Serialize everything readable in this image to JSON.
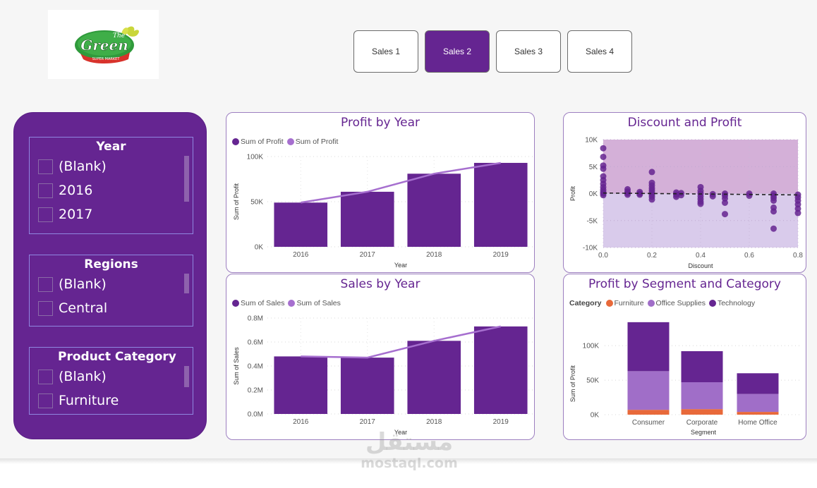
{
  "logo": {
    "brand_top": "The",
    "brand_main": "Green",
    "brand_sub": "SUPER MARKET"
  },
  "nav": {
    "buttons": [
      {
        "label": "Sales 1",
        "active": false
      },
      {
        "label": "Sales 2",
        "active": true
      },
      {
        "label": "Sales 3",
        "active": false
      },
      {
        "label": "Sales 4",
        "active": false
      }
    ]
  },
  "slicers": {
    "year": {
      "title": "Year",
      "items": [
        "(Blank)",
        "2016",
        "2017"
      ]
    },
    "regions": {
      "title": "Regions",
      "items": [
        "(Blank)",
        "Central"
      ]
    },
    "category": {
      "title": "Product Category",
      "items": [
        "(Blank)",
        "Furniture"
      ]
    }
  },
  "colors": {
    "primary": "#652591",
    "line": "#a66fcf",
    "furniture": "#e8693a",
    "office": "#a06ec8",
    "technology": "#652591",
    "scatter_pos_band": "#d4b0d8",
    "scatter_neg_band": "#d9cbeb"
  },
  "chart_data": [
    {
      "id": "profit_by_year",
      "type": "bar",
      "title": "Profit by Year",
      "legend": [
        "Sum of Profit",
        "Sum of Profit"
      ],
      "categories": [
        "2016",
        "2017",
        "2018",
        "2019"
      ],
      "series": [
        {
          "name": "Sum of Profit",
          "kind": "bar",
          "values": [
            49000,
            61000,
            81000,
            93000
          ]
        },
        {
          "name": "Sum of Profit",
          "kind": "line",
          "values": [
            49000,
            61000,
            81000,
            93000
          ]
        }
      ],
      "xlabel": "Year",
      "ylabel": "Sum of Profit",
      "ylim": [
        0,
        100000
      ],
      "yticks": [
        {
          "v": 0,
          "label": "0K"
        },
        {
          "v": 50000,
          "label": "50K"
        },
        {
          "v": 100000,
          "label": "100K"
        }
      ],
      "grid": true
    },
    {
      "id": "sales_by_year",
      "type": "bar",
      "title": "Sales by Year",
      "legend": [
        "Sum of Sales",
        "Sum of Sales"
      ],
      "categories": [
        "2016",
        "2017",
        "2018",
        "2019"
      ],
      "series": [
        {
          "name": "Sum of Sales",
          "kind": "bar",
          "values": [
            0.48,
            0.47,
            0.61,
            0.73
          ]
        },
        {
          "name": "Sum of Sales",
          "kind": "line",
          "values": [
            0.48,
            0.47,
            0.61,
            0.73
          ]
        }
      ],
      "xlabel": "Year",
      "ylabel": "Sum of Sales",
      "ylim": [
        0,
        0.8
      ],
      "yticks": [
        {
          "v": 0,
          "label": "0.0M"
        },
        {
          "v": 0.2,
          "label": "0.2M"
        },
        {
          "v": 0.4,
          "label": "0.4M"
        },
        {
          "v": 0.6,
          "label": "0.6M"
        },
        {
          "v": 0.8,
          "label": "0.8M"
        }
      ],
      "grid": true
    },
    {
      "id": "discount_and_profit",
      "type": "scatter",
      "title": "Discount and Profit",
      "xlabel": "Discount",
      "ylabel": "Profit",
      "xlim": [
        0,
        0.8
      ],
      "ylim": [
        -10000,
        10000
      ],
      "xticks": [
        {
          "v": 0,
          "label": "0.0"
        },
        {
          "v": 0.2,
          "label": "0.2"
        },
        {
          "v": 0.4,
          "label": "0.4"
        },
        {
          "v": 0.6,
          "label": "0.6"
        },
        {
          "v": 0.8,
          "label": "0.8"
        }
      ],
      "yticks": [
        {
          "v": -10000,
          "label": "-10K"
        },
        {
          "v": -5000,
          "label": "-5K"
        },
        {
          "v": 0,
          "label": "0K"
        },
        {
          "v": 5000,
          "label": "5K"
        },
        {
          "v": 10000,
          "label": "10K"
        }
      ],
      "trendline": {
        "y_at_xmin": 100,
        "y_at_xmax": -250
      },
      "points": [
        [
          0,
          8400
        ],
        [
          0,
          6800
        ],
        [
          0,
          5200
        ],
        [
          0,
          4600
        ],
        [
          0,
          3200
        ],
        [
          0,
          2500
        ],
        [
          0,
          1800
        ],
        [
          0,
          1200
        ],
        [
          0,
          700
        ],
        [
          0,
          300
        ],
        [
          0,
          0
        ],
        [
          0,
          -300
        ],
        [
          0.1,
          800
        ],
        [
          0.1,
          400
        ],
        [
          0.1,
          100
        ],
        [
          0.1,
          -200
        ],
        [
          0.15,
          300
        ],
        [
          0.15,
          0
        ],
        [
          0.15,
          -200
        ],
        [
          0.2,
          4000
        ],
        [
          0.2,
          2000
        ],
        [
          0.2,
          1500
        ],
        [
          0.2,
          1000
        ],
        [
          0.2,
          600
        ],
        [
          0.2,
          200
        ],
        [
          0.2,
          -200
        ],
        [
          0.2,
          -600
        ],
        [
          0.2,
          -1100
        ],
        [
          0.3,
          200
        ],
        [
          0.3,
          -200
        ],
        [
          0.3,
          -600
        ],
        [
          0.32,
          100
        ],
        [
          0.32,
          -300
        ],
        [
          0.4,
          1200
        ],
        [
          0.4,
          500
        ],
        [
          0.4,
          0
        ],
        [
          0.4,
          -500
        ],
        [
          0.4,
          -1000
        ],
        [
          0.4,
          -1500
        ],
        [
          0.4,
          -1900
        ],
        [
          0.45,
          -100
        ],
        [
          0.45,
          -500
        ],
        [
          0.5,
          0
        ],
        [
          0.5,
          -400
        ],
        [
          0.5,
          -900
        ],
        [
          0.5,
          -1700
        ],
        [
          0.5,
          -3800
        ],
        [
          0.6,
          0
        ],
        [
          0.6,
          -400
        ],
        [
          0.7,
          0
        ],
        [
          0.7,
          -400
        ],
        [
          0.7,
          -800
        ],
        [
          0.7,
          -1300
        ],
        [
          0.7,
          -2600
        ],
        [
          0.7,
          -3300
        ],
        [
          0.7,
          -6500
        ],
        [
          0.8,
          -200
        ],
        [
          0.8,
          -700
        ],
        [
          0.8,
          -1300
        ],
        [
          0.8,
          -2000
        ],
        [
          0.8,
          -2800
        ],
        [
          0.8,
          -3600
        ]
      ],
      "grid": true
    },
    {
      "id": "profit_by_segment_category",
      "type": "bar",
      "stacked": true,
      "title": "Profit by Segment and Category",
      "legend_title": "Category",
      "categories": [
        "Consumer",
        "Corporate",
        "Home Office"
      ],
      "series": [
        {
          "name": "Furniture",
          "values": [
            7000,
            8000,
            4000
          ]
        },
        {
          "name": "Office Supplies",
          "values": [
            56000,
            39000,
            26000
          ]
        },
        {
          "name": "Technology",
          "values": [
            71000,
            45000,
            30000
          ]
        }
      ],
      "xlabel": "Segment",
      "ylabel": "Sum of Profit",
      "ylim": [
        0,
        140000
      ],
      "yticks": [
        {
          "v": 0,
          "label": "0K"
        },
        {
          "v": 50000,
          "label": "50K"
        },
        {
          "v": 100000,
          "label": "100K"
        }
      ],
      "grid": true
    }
  ],
  "watermark": {
    "arabic": "مستقل",
    "latin": "mostaql.com"
  }
}
